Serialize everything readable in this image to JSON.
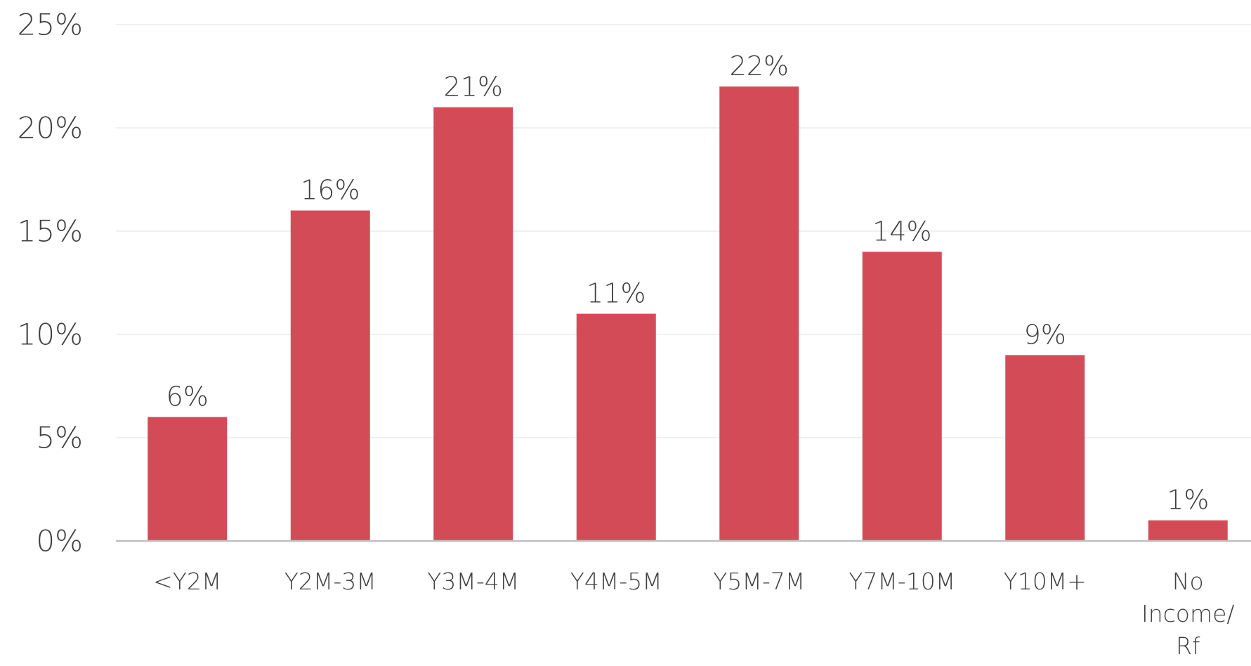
{
  "chart_data": {
    "type": "bar",
    "categories": [
      [
        "<Y2M"
      ],
      [
        "Y2M-3M"
      ],
      [
        "Y3M-4M"
      ],
      [
        "Y4M-5M"
      ],
      [
        "Y5M-7M"
      ],
      [
        "Y7M-10M"
      ],
      [
        "Y10M+"
      ],
      [
        "No",
        "Income/",
        "Rf"
      ]
    ],
    "values": [
      6,
      16,
      21,
      11,
      22,
      14,
      9,
      1
    ],
    "data_labels": [
      "6%",
      "16%",
      "21%",
      "11%",
      "22%",
      "14%",
      "9%",
      "1%"
    ],
    "y_ticks": [
      0,
      5,
      10,
      15,
      20,
      25
    ],
    "y_tick_labels": [
      "0%",
      "5%",
      "10%",
      "15%",
      "20%",
      "25%"
    ],
    "ylim": [
      0,
      25
    ],
    "title": "",
    "xlabel": "",
    "ylabel": "",
    "grid": true,
    "legend": "none",
    "bar_color": "#d44b58"
  }
}
